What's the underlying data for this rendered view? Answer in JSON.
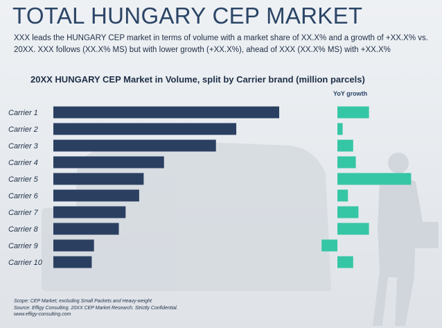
{
  "header": {
    "title": "TOTAL HUNGARY CEP MARKET",
    "subtitle": "XXX leads the HUNGARY CEP market in terms of volume with a market share of XX.X% and a growth of +XX.X% vs. 20XX. XXX follows (XX.X% MS) but with lower growth (+XX.X%), ahead of XXX (XX.X% MS) with +XX.X%"
  },
  "chart_data": {
    "type": "bar",
    "orientation": "horizontal",
    "title": "20XX HUNGARY CEP Market in Volume, split by Carrier brand (million parcels)",
    "categories": [
      "Carrier 1",
      "Carrier 2",
      "Carrier 3",
      "Carrier 4",
      "Carrier 5",
      "Carrier 6",
      "Carrier 7",
      "Carrier 8",
      "Carrier 9",
      "Carrier 10"
    ],
    "series": [
      {
        "values": [
          10.0,
          8.1,
          7.2,
          4.9,
          4.0,
          3.8,
          3.2,
          2.9,
          1.8,
          1.7
        ]
      },
      {
        "name": "YoY growth",
        "values": [
          12,
          2,
          6,
          7,
          28,
          4,
          8,
          12,
          -6,
          6
        ]
      }
    ],
    "grid": false,
    "colors": {
      "volume": "#2b4061",
      "growth": "#35c6a5"
    }
  },
  "footnotes": {
    "scope": "Scope: CEP Market; excluding Small Packets and Heavy-weight",
    "source": "Source: Effigy Consulting. 20XX CEP Market Research. Strictly Confidential.",
    "website": "www.effigy-consulting.com"
  }
}
